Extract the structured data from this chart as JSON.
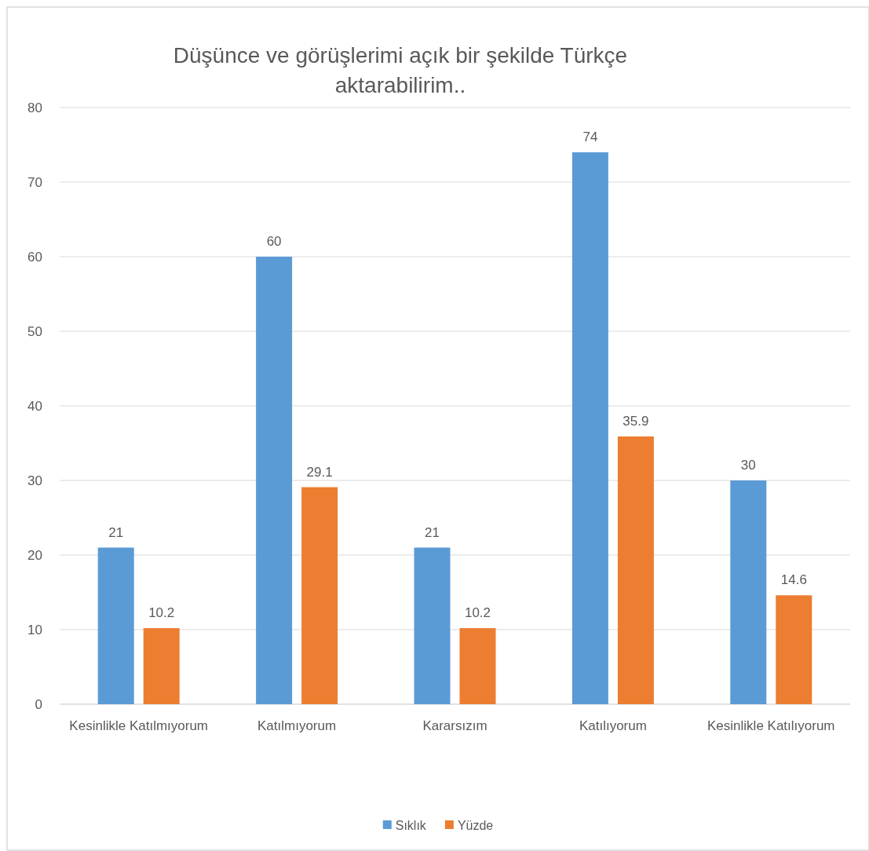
{
  "chart_data": {
    "type": "bar",
    "title": "Düşünce ve görüşlerimi açık bir şekilde Türkçe aktarabilirim..",
    "categories": [
      "Kesinlikle Katılmıyorum",
      "Katılmıyorum",
      "Kararsızım",
      "Katılıyorum",
      "Kesinlikle Katılıyorum"
    ],
    "series": [
      {
        "name": "Sıklık",
        "color": "#5b9bd5",
        "values": [
          21,
          60,
          21,
          74,
          30
        ]
      },
      {
        "name": "Yüzde",
        "color": "#ed7d31",
        "values": [
          10.2,
          29.1,
          10.2,
          35.9,
          14.6
        ]
      }
    ],
    "ylim": [
      0,
      80
    ],
    "yticks": [
      0,
      10,
      20,
      30,
      40,
      50,
      60,
      70,
      80
    ],
    "grid": "y",
    "legend": "bottom",
    "data_labels": true
  }
}
